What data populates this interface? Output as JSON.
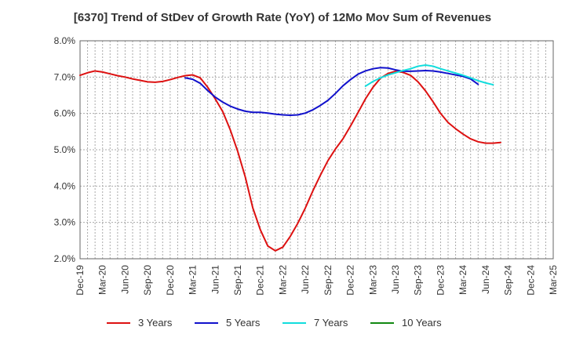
{
  "chart_data": {
    "type": "line",
    "title": "[6370]  Trend of StDev of Growth Rate (YoY) of 12Mo Mov Sum of Revenues",
    "xlabel": "",
    "ylabel": "",
    "ylim": [
      2.0,
      8.0
    ],
    "y_ticks": [
      2.0,
      3.0,
      4.0,
      5.0,
      6.0,
      7.0,
      8.0
    ],
    "y_tick_labels": [
      "2.0%",
      "3.0%",
      "4.0%",
      "5.0%",
      "6.0%",
      "7.0%",
      "8.0%"
    ],
    "x_tick_labels": [
      "Dec-19",
      "Mar-20",
      "Jun-20",
      "Sep-20",
      "Dec-20",
      "Mar-21",
      "Jun-21",
      "Sep-21",
      "Dec-21",
      "Mar-22",
      "Jun-22",
      "Sep-22",
      "Dec-22",
      "Mar-23",
      "Jun-23",
      "Sep-23",
      "Dec-23",
      "Mar-24",
      "Jun-24",
      "Sep-24",
      "Dec-24",
      "Mar-25"
    ],
    "grid": true,
    "legend_position": "bottom",
    "series": [
      {
        "name": "3 Years",
        "color": "#dd1111",
        "start_index": 0,
        "values": [
          7.05,
          7.12,
          7.17,
          7.14,
          7.09,
          7.04,
          7.0,
          6.95,
          6.91,
          6.87,
          6.86,
          6.88,
          6.93,
          6.99,
          7.04,
          7.06,
          6.98,
          6.72,
          6.4,
          6.05,
          5.55,
          4.95,
          4.25,
          3.4,
          2.8,
          2.35,
          2.22,
          2.32,
          2.62,
          2.98,
          3.4,
          3.87,
          4.3,
          4.7,
          5.02,
          5.3,
          5.65,
          6.02,
          6.4,
          6.72,
          6.97,
          7.1,
          7.16,
          7.13,
          7.05,
          6.87,
          6.62,
          6.32,
          6.0,
          5.75,
          5.58,
          5.43,
          5.3,
          5.22,
          5.18,
          5.18,
          5.2
        ]
      },
      {
        "name": "5 Years",
        "color": "#1111cc",
        "start_index": 14,
        "values": [
          6.98,
          6.94,
          6.83,
          6.63,
          6.45,
          6.31,
          6.2,
          6.12,
          6.06,
          6.03,
          6.03,
          6.01,
          5.98,
          5.96,
          5.95,
          5.96,
          6.01,
          6.1,
          6.22,
          6.36,
          6.55,
          6.76,
          6.93,
          7.08,
          7.17,
          7.23,
          7.26,
          7.25,
          7.2,
          7.16,
          7.16,
          7.17,
          7.18,
          7.17,
          7.14,
          7.1,
          7.06,
          7.02,
          6.95,
          6.8
        ]
      },
      {
        "name": "7 Years",
        "color": "#11dddd",
        "start_index": 38,
        "values": [
          6.75,
          6.88,
          6.98,
          7.06,
          7.12,
          7.18,
          7.23,
          7.3,
          7.33,
          7.3,
          7.23,
          7.17,
          7.11,
          7.05,
          6.98,
          6.9,
          6.84,
          6.79
        ]
      },
      {
        "name": "10 Years",
        "color": "#118811",
        "start_index": 0,
        "values": []
      }
    ]
  }
}
